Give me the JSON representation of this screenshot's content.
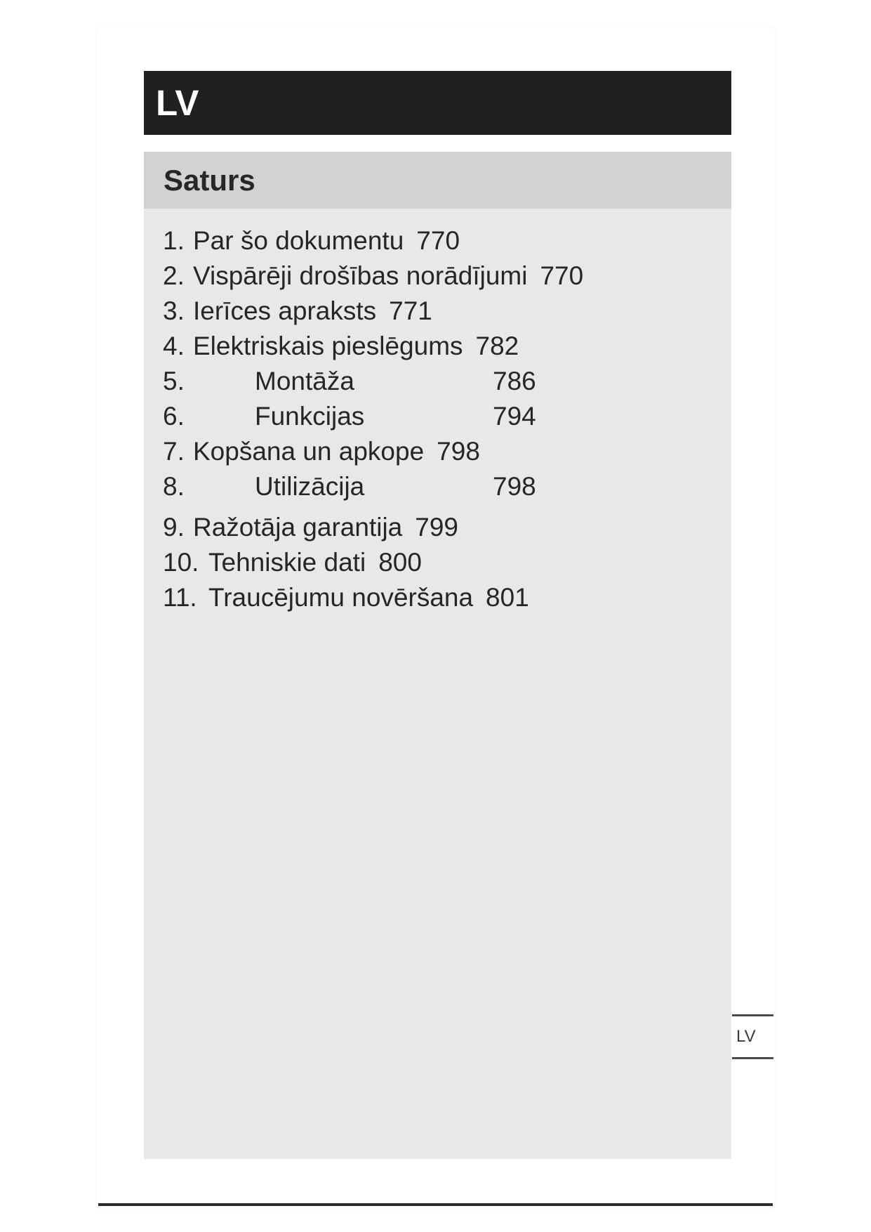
{
  "header": {
    "language_code": "LV"
  },
  "toc": {
    "title": "Saturs",
    "items": [
      {
        "number": "1.",
        "title": "Par šo dokumentu",
        "page": "770",
        "layout": "inline"
      },
      {
        "number": "2.",
        "title": "Vispārēji drošības norādījumi",
        "page": "770",
        "layout": "inline"
      },
      {
        "number": "3.",
        "title": "Ierīces apraksts",
        "page": "771",
        "layout": "inline"
      },
      {
        "number": "4.",
        "title": "Elektriskais pieslēgums",
        "page": "782",
        "layout": "inline"
      },
      {
        "number": "5.",
        "title": "Montāža",
        "page": "786",
        "layout": "spread"
      },
      {
        "number": "6.",
        "title": "Funkcijas",
        "page": "794",
        "layout": "spread"
      },
      {
        "number": "7.",
        "title": "Kopšana un apkope",
        "page": "798",
        "layout": "inline"
      },
      {
        "number": "8.",
        "title": "Utilizācija",
        "page": "798",
        "layout": "spread"
      },
      {
        "number": "9.",
        "title": "Ražotāja garantija",
        "page": "799",
        "layout": "inline"
      },
      {
        "number": "10.",
        "title": "Tehniskie dati",
        "page": "800",
        "layout": "inline"
      },
      {
        "number": "11.",
        "title": "Traucējumu novēršana",
        "page": "801",
        "layout": "inline"
      }
    ]
  },
  "side_tab": {
    "label": "LV"
  },
  "colors": {
    "header_bar_bg": "#211f20",
    "header_bar_text": "#ffffff",
    "title_bar_bg": "#d3d1d1",
    "content_panel_bg": "#e9e8e8",
    "body_text": "#272526",
    "footer_rule": "#2c2c2c",
    "side_tab_line": "#4b4b4b"
  }
}
